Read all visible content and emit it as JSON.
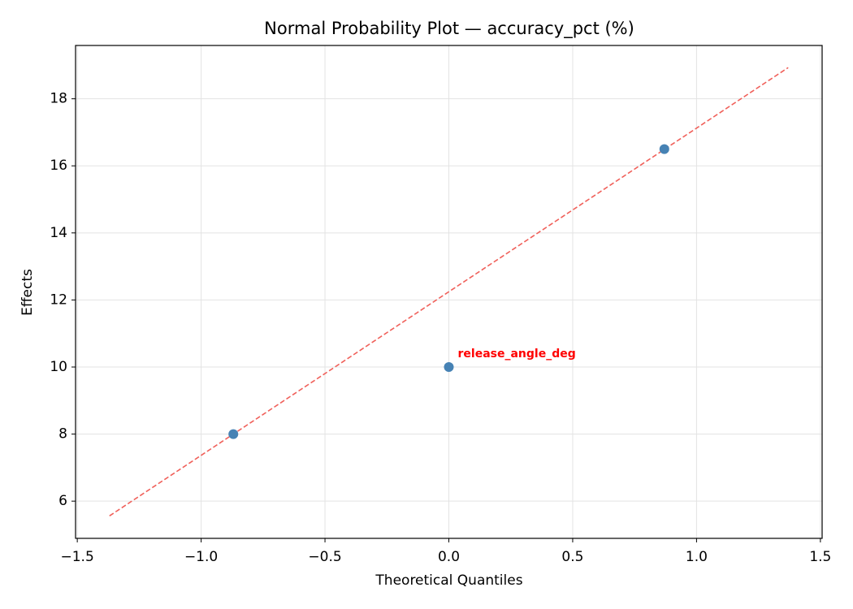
{
  "chart_data": {
    "type": "scatter",
    "title": "Normal Probability Plot — accuracy_pct (%)",
    "x_label": "Theoretical Quantiles",
    "y_label": "Effects",
    "x": [
      -0.87,
      0,
      0.87
    ],
    "values": [
      8,
      10,
      16.5
    ],
    "color": "#4682b4",
    "reference_line": {
      "x": [
        -1.37,
        1.37
      ],
      "values": [
        5.56,
        18.93
      ],
      "color": "#f0605a",
      "style": "dashed"
    },
    "annotations": [
      {
        "text": "release_angle_deg",
        "x": 0,
        "y": 10,
        "color": "#ff0000"
      }
    ],
    "xlim": [
      -1.507,
      1.507
    ],
    "ylim": [
      4.89,
      19.59
    ],
    "xticks": [
      {
        "value": -1.5,
        "label": "−1.5"
      },
      {
        "value": -1.0,
        "label": "−1.0"
      },
      {
        "value": -0.5,
        "label": "−0.5"
      },
      {
        "value": 0,
        "label": "0.0"
      },
      {
        "value": 0.5,
        "label": "0.5"
      },
      {
        "value": 1.0,
        "label": "1.0"
      },
      {
        "value": 1.5,
        "label": "1.5"
      }
    ],
    "yticks": [
      6,
      8,
      10,
      12,
      14,
      16,
      18
    ],
    "grid": true
  }
}
